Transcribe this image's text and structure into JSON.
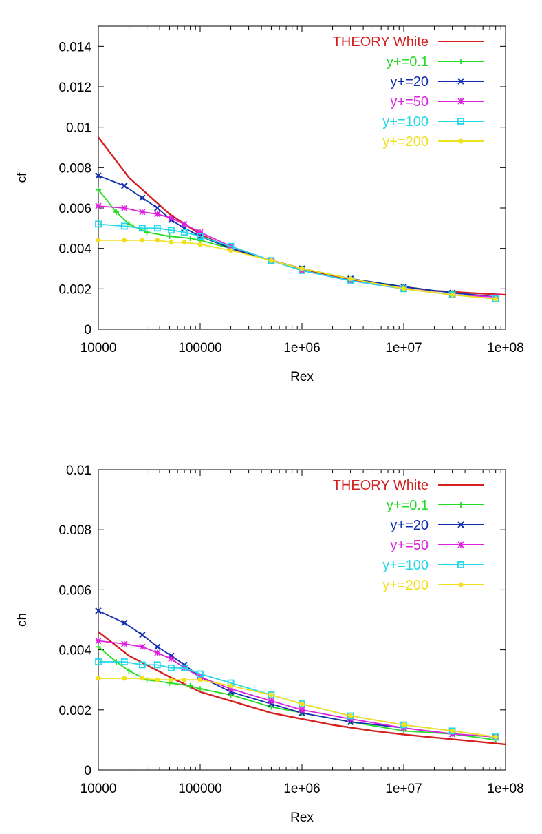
{
  "chart_data": [
    {
      "type": "line",
      "xscale": "log",
      "xlabel": "Rex",
      "ylabel": "cf",
      "xlim": [
        10000,
        100000000
      ],
      "ylim": [
        0,
        0.015
      ],
      "xticks": [
        "10000",
        "100000",
        "1e+06",
        "1e+07",
        "1e+08"
      ],
      "yticks": [
        "0",
        "0.002",
        "0.004",
        "0.006",
        "0.008",
        "0.01",
        "0.012",
        "0.014"
      ],
      "ytick_values": [
        0,
        0.002,
        0.004,
        0.006,
        0.008,
        0.01,
        0.012,
        0.014
      ],
      "legend_position": "top-right",
      "series": [
        {
          "name": "THEORY White",
          "color": "#d42020",
          "marker": "none",
          "x": [
            10000,
            20000,
            50000,
            100000,
            200000,
            500000,
            1000000,
            2000000,
            5000000,
            10000000,
            20000000,
            50000000,
            100000000
          ],
          "y": [
            0.0095,
            0.0075,
            0.0057,
            0.0047,
            0.004,
            0.0034,
            0.003,
            0.0026,
            0.0023,
            0.0021,
            0.0019,
            0.00178,
            0.0017
          ]
        },
        {
          "name": "y+=0.1",
          "color": "#22dd22",
          "marker": "plus",
          "x": [
            10000,
            15000,
            20000,
            30000,
            50000,
            80000,
            100000,
            200000,
            500000,
            1000000,
            3000000,
            10000000,
            30000000,
            80000000
          ],
          "y": [
            0.0069,
            0.0058,
            0.0052,
            0.0048,
            0.0046,
            0.0045,
            0.0044,
            0.004,
            0.0034,
            0.003,
            0.0025,
            0.0021,
            0.0018,
            0.0016
          ]
        },
        {
          "name": "y+=20",
          "color": "#1030b0",
          "marker": "cross",
          "x": [
            10000,
            18000,
            27000,
            38000,
            52000,
            70000,
            100000,
            200000,
            500000,
            1000000,
            3000000,
            10000000,
            30000000,
            80000000
          ],
          "y": [
            0.0076,
            0.0071,
            0.0065,
            0.006,
            0.0054,
            0.005,
            0.0046,
            0.004,
            0.0034,
            0.003,
            0.0025,
            0.0021,
            0.0018,
            0.0016
          ]
        },
        {
          "name": "y+=50",
          "color": "#dd22dd",
          "marker": "star",
          "x": [
            10000,
            18000,
            27000,
            38000,
            52000,
            70000,
            100000,
            200000,
            500000,
            1000000,
            3000000,
            10000000,
            30000000,
            80000000
          ],
          "y": [
            0.0061,
            0.006,
            0.0058,
            0.0057,
            0.0055,
            0.0052,
            0.0048,
            0.0041,
            0.0034,
            0.0029,
            0.0024,
            0.002,
            0.0017,
            0.0016
          ]
        },
        {
          "name": "y+=100",
          "color": "#22d8e8",
          "marker": "box",
          "x": [
            10000,
            18000,
            27000,
            38000,
            52000,
            70000,
            100000,
            200000,
            500000,
            1000000,
            3000000,
            10000000,
            30000000,
            80000000
          ],
          "y": [
            0.0052,
            0.0051,
            0.005,
            0.005,
            0.0049,
            0.0048,
            0.0046,
            0.0041,
            0.0034,
            0.0029,
            0.0024,
            0.002,
            0.0017,
            0.0015
          ]
        },
        {
          "name": "y+=200",
          "color": "#f0e020",
          "marker": "dot",
          "x": [
            10000,
            18000,
            27000,
            38000,
            52000,
            70000,
            100000,
            200000,
            500000,
            1000000,
            3000000,
            10000000,
            30000000,
            80000000
          ],
          "y": [
            0.0044,
            0.0044,
            0.0044,
            0.0044,
            0.0043,
            0.0043,
            0.0042,
            0.0039,
            0.0034,
            0.003,
            0.0025,
            0.002,
            0.0017,
            0.0015
          ]
        }
      ]
    },
    {
      "type": "line",
      "xscale": "log",
      "xlabel": "Rex",
      "ylabel": "ch",
      "xlim": [
        10000,
        100000000
      ],
      "ylim": [
        0,
        0.01
      ],
      "xticks": [
        "10000",
        "100000",
        "1e+06",
        "1e+07",
        "1e+08"
      ],
      "yticks": [
        "0",
        "0.002",
        "0.004",
        "0.006",
        "0.008",
        "0.01"
      ],
      "ytick_values": [
        0,
        0.002,
        0.004,
        0.006,
        0.008,
        0.01
      ],
      "legend_position": "top-right",
      "series": [
        {
          "name": "THEORY White",
          "color": "#d42020",
          "marker": "none",
          "x": [
            10000,
            20000,
            50000,
            100000,
            200000,
            500000,
            1000000,
            2000000,
            5000000,
            10000000,
            20000000,
            50000000,
            100000000
          ],
          "y": [
            0.0046,
            0.0038,
            0.0031,
            0.0026,
            0.0023,
            0.0019,
            0.0017,
            0.0015,
            0.0013,
            0.00118,
            0.00108,
            0.00095,
            0.00085
          ]
        },
        {
          "name": "y+=0.1",
          "color": "#22dd22",
          "marker": "plus",
          "x": [
            10000,
            15000,
            20000,
            30000,
            50000,
            80000,
            100000,
            200000,
            500000,
            1000000,
            3000000,
            10000000,
            30000000,
            80000000
          ],
          "y": [
            0.0041,
            0.0036,
            0.0033,
            0.003,
            0.0029,
            0.0028,
            0.0027,
            0.0025,
            0.0021,
            0.0019,
            0.0016,
            0.0013,
            0.0012,
            0.001
          ]
        },
        {
          "name": "y+=20",
          "color": "#1030b0",
          "marker": "cross",
          "x": [
            10000,
            18000,
            27000,
            38000,
            52000,
            70000,
            100000,
            200000,
            500000,
            1000000,
            3000000,
            10000000,
            30000000,
            80000000
          ],
          "y": [
            0.0053,
            0.0049,
            0.0045,
            0.0041,
            0.0038,
            0.0035,
            0.0031,
            0.0026,
            0.0022,
            0.0019,
            0.0016,
            0.0014,
            0.0012,
            0.0011
          ]
        },
        {
          "name": "y+=50",
          "color": "#dd22dd",
          "marker": "star",
          "x": [
            10000,
            18000,
            27000,
            38000,
            52000,
            70000,
            100000,
            200000,
            500000,
            1000000,
            3000000,
            10000000,
            30000000,
            80000000
          ],
          "y": [
            0.0043,
            0.0042,
            0.0041,
            0.0039,
            0.0037,
            0.0034,
            0.0031,
            0.0027,
            0.0023,
            0.002,
            0.0017,
            0.0014,
            0.0012,
            0.0011
          ]
        },
        {
          "name": "y+=100",
          "color": "#22d8e8",
          "marker": "box",
          "x": [
            10000,
            18000,
            27000,
            38000,
            52000,
            70000,
            100000,
            200000,
            500000,
            1000000,
            3000000,
            10000000,
            30000000,
            80000000
          ],
          "y": [
            0.0036,
            0.0036,
            0.0035,
            0.0035,
            0.0034,
            0.0034,
            0.0032,
            0.0029,
            0.0025,
            0.0022,
            0.0018,
            0.0015,
            0.0013,
            0.0011
          ]
        },
        {
          "name": "y+=200",
          "color": "#f0e020",
          "marker": "dot",
          "x": [
            10000,
            18000,
            27000,
            38000,
            52000,
            70000,
            100000,
            200000,
            500000,
            1000000,
            3000000,
            10000000,
            30000000,
            80000000
          ],
          "y": [
            0.00305,
            0.00305,
            0.00305,
            0.003,
            0.003,
            0.003,
            0.003,
            0.0028,
            0.0025,
            0.0022,
            0.0018,
            0.0015,
            0.0013,
            0.0011
          ]
        }
      ]
    }
  ]
}
